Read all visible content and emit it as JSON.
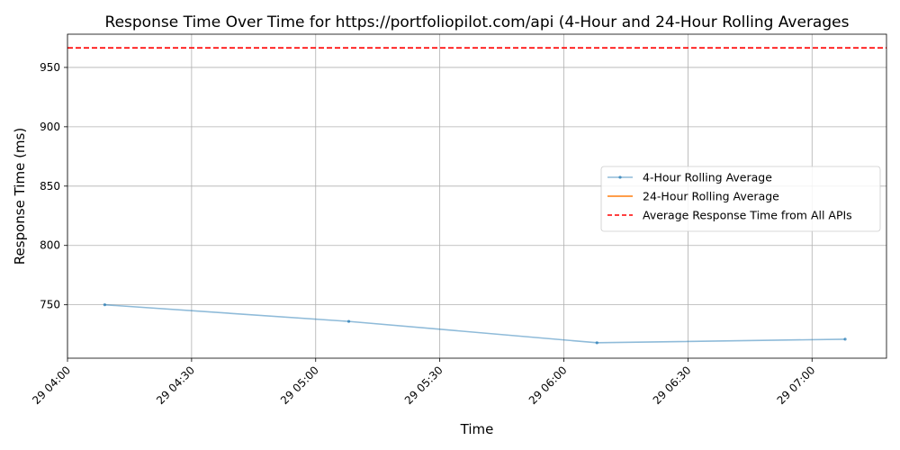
{
  "chart_data": {
    "type": "line",
    "title": "Response Time Over Time for https://portfoliopilot.com/api (4-Hour and 24-Hour Rolling Averages",
    "xlabel": "Time",
    "ylabel": "Response Time (ms)",
    "x_ticks": [
      "29 04:00",
      "29 04:30",
      "29 05:00",
      "29 05:30",
      "29 06:00",
      "29 06:30",
      "29 07:00"
    ],
    "y_ticks": [
      "750",
      "800",
      "850",
      "900",
      "950"
    ],
    "xlim": [
      "04:00",
      "07:18"
    ],
    "ylim": [
      705,
      978
    ],
    "grid": true,
    "legend_position": "right",
    "series": [
      {
        "name": "4-Hour Rolling Average",
        "color": "#1f77b4",
        "x": [
          "04:09",
          "05:08",
          "06:08",
          "07:08"
        ],
        "y": [
          750,
          736,
          718,
          721
        ]
      },
      {
        "name": "24-Hour Rolling Average",
        "color": "#ff7f0e",
        "x": [],
        "y": []
      }
    ],
    "reference_line": {
      "name": "Average Response Time from All APIs",
      "color": "#ff0000",
      "value": 966.5
    }
  }
}
